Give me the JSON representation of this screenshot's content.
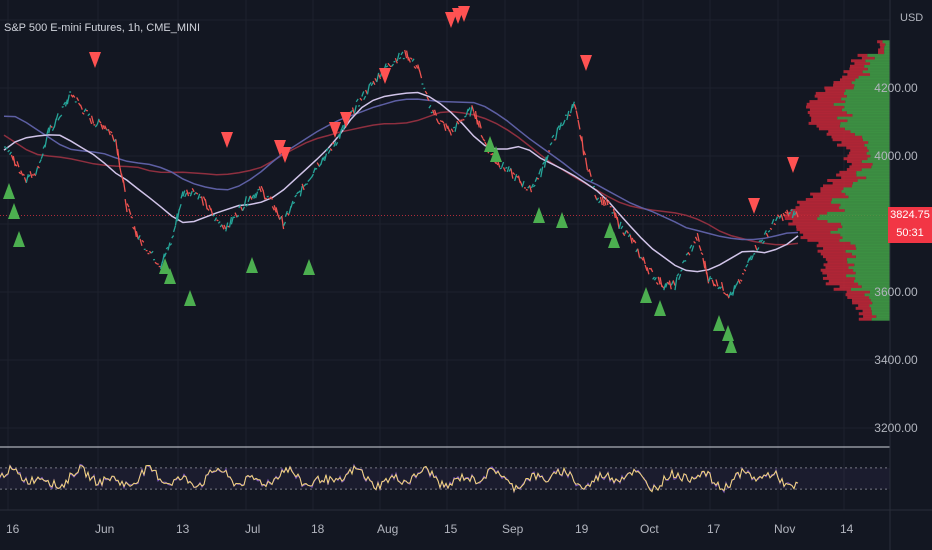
{
  "title": "S&P 500 E-mini Futures, 1h, CME_MINI",
  "price_scale": {
    "currency": "USD",
    "labels": [
      "4200.00",
      "4000.00",
      "3600.00",
      "3400.00",
      "3200.00"
    ],
    "last_price": "3824.75",
    "countdown": "50:31"
  },
  "colors": {
    "background": "#131722",
    "up": "#26a69a",
    "down": "#ef5350",
    "sell_marker": "#ff5252",
    "buy_marker": "#4caf50",
    "ma_fast": "#d1c4e9",
    "ma_mid": "#5d5fa3",
    "ma_slow": "#8e2f3f",
    "volume_profile_up": "#43a047",
    "volume_profile_down": "#c62838",
    "rsi": "#f5d77a",
    "rsi_signal": "#7e57c2"
  },
  "chart_data": {
    "type": "line",
    "xlabel": "",
    "ylabel": "",
    "x_tick_labels": [
      "16",
      "Jun",
      "13",
      "Jul",
      "18",
      "Aug",
      "15",
      "Sep",
      "19",
      "Oct",
      "17",
      "Nov",
      "14"
    ],
    "ylim": [
      3150,
      4400
    ],
    "series": [
      {
        "values": [
          4040,
          3980,
          3935,
          3960,
          4070,
          4120,
          4185,
          4140,
          4100,
          4090,
          4050,
          3850,
          3760,
          3720,
          3680,
          3750,
          3890,
          3900,
          3860,
          3810,
          3790,
          3840,
          3880,
          3900,
          3860,
          3800,
          3870,
          3920,
          3975,
          4010,
          4060,
          4120,
          4170,
          4215,
          4255,
          4285,
          4300,
          4260,
          4150,
          4100,
          4070,
          4110,
          4140,
          4040,
          3985,
          3960,
          3930,
          3900,
          3950,
          4040,
          4100,
          4150,
          3990,
          3880,
          3860,
          3800,
          3760,
          3700,
          3650,
          3620,
          3620,
          3700,
          3760,
          3640,
          3620,
          3590,
          3640,
          3720,
          3760,
          3810,
          3830,
          3830
        ]
      }
    ]
  },
  "rsi_panel": {
    "upper": 70,
    "lower": 30
  }
}
